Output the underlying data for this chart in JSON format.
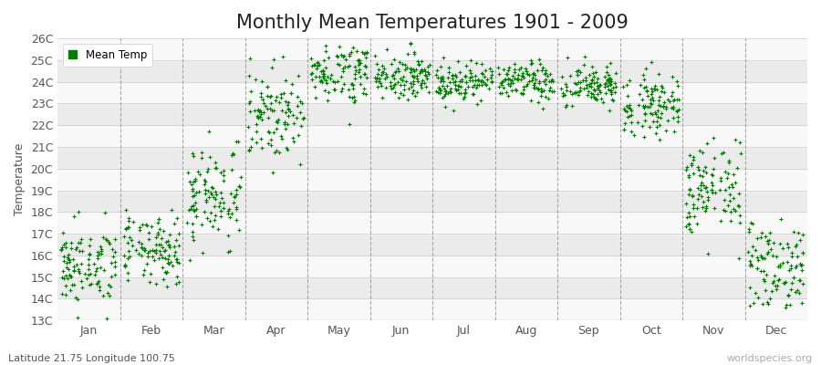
{
  "title": "Monthly Mean Temperatures 1901 - 2009",
  "ylabel": "Temperature",
  "xlabel": "",
  "bottom_left_text": "Latitude 21.75 Longitude 100.75",
  "bottom_right_text": "worldspecies.org",
  "legend_label": "Mean Temp",
  "dot_color": "#008000",
  "background_color": "#ffffff",
  "hband_color_odd": "#ebebeb",
  "hband_color_even": "#f8f8f8",
  "vdash_color": "#888888",
  "ylim_min": 13,
  "ylim_max": 26,
  "months": [
    "Jan",
    "Feb",
    "Mar",
    "Apr",
    "May",
    "Jun",
    "Jul",
    "Aug",
    "Sep",
    "Oct",
    "Nov",
    "Dec"
  ],
  "monthly_means": [
    15.5,
    16.2,
    18.8,
    22.5,
    24.5,
    24.3,
    24.0,
    24.0,
    23.8,
    23.0,
    19.0,
    15.5
  ],
  "monthly_stds": [
    0.9,
    0.8,
    1.2,
    1.0,
    0.7,
    0.5,
    0.45,
    0.45,
    0.5,
    0.7,
    1.1,
    1.1
  ],
  "n_years": 109,
  "seed": 42,
  "title_fontsize": 15,
  "axis_label_fontsize": 9,
  "tick_label_fontsize": 9
}
